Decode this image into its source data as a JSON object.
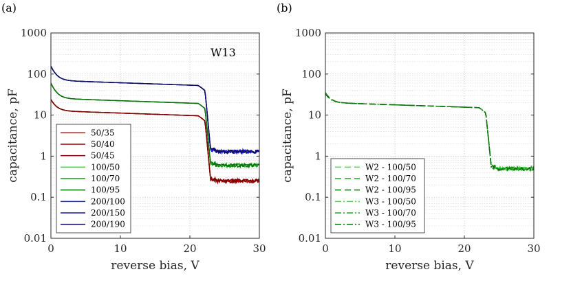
{
  "chart_data": [
    {
      "type": "line",
      "panel_label": "(a)",
      "annotation": "W13",
      "xlabel": "reverse bias, V",
      "ylabel": "capacitance, pF",
      "xlim": [
        0,
        30
      ],
      "ylim": [
        0.01,
        1000
      ],
      "yscale": "log",
      "grid": true,
      "legend_position": "bottom-left",
      "x_ticks": [
        "0",
        "10",
        "20",
        "30"
      ],
      "y_ticks": [
        "0.01",
        "0.1",
        "1",
        "10",
        "100",
        "1000"
      ],
      "series": [
        {
          "name": "50/35",
          "color": "#cc0000",
          "dash": "solid",
          "start": 24,
          "pre_drop": 9.5,
          "drop_v": 22.7,
          "after": 0.25
        },
        {
          "name": "50/40",
          "color": "#a00000",
          "dash": "solid",
          "start": 24,
          "pre_drop": 9.5,
          "drop_v": 22.7,
          "after": 0.25
        },
        {
          "name": "50/45",
          "color": "#7a0000",
          "dash": "solid",
          "start": 24,
          "pre_drop": 9.5,
          "drop_v": 22.7,
          "after": 0.25
        },
        {
          "name": "100/50",
          "color": "#22dd22",
          "dash": "solid",
          "start": 60,
          "pre_drop": 19,
          "drop_v": 22.7,
          "after": 0.6
        },
        {
          "name": "100/70",
          "color": "#159a15",
          "dash": "solid",
          "start": 60,
          "pre_drop": 19,
          "drop_v": 22.7,
          "after": 0.6
        },
        {
          "name": "100/95",
          "color": "#0a6e0a",
          "dash": "solid",
          "start": 60,
          "pre_drop": 19,
          "drop_v": 22.7,
          "after": 0.6
        },
        {
          "name": "200/100",
          "color": "#1a1aee",
          "dash": "solid",
          "start": 155,
          "pre_drop": 52,
          "drop_v": 22.7,
          "after": 1.3
        },
        {
          "name": "200/150",
          "color": "#12129a",
          "dash": "solid",
          "start": 155,
          "pre_drop": 52,
          "drop_v": 22.7,
          "after": 1.3
        },
        {
          "name": "200/190",
          "color": "#0c0c60",
          "dash": "solid",
          "start": 155,
          "pre_drop": 52,
          "drop_v": 22.7,
          "after": 1.3
        }
      ]
    },
    {
      "type": "line",
      "panel_label": "(b)",
      "xlabel": "reverse bias, V",
      "ylabel": "capacitance, pF",
      "xlim": [
        0,
        30
      ],
      "ylim": [
        0.01,
        1000
      ],
      "yscale": "log",
      "grid": true,
      "legend_position": "bottom-left",
      "x_ticks": [
        "0",
        "10",
        "20",
        "30"
      ],
      "y_ticks": [
        "0.01",
        "0.1",
        "1",
        "10",
        "100",
        "1000"
      ],
      "series": [
        {
          "name": "W2 - 100/50",
          "color": "#33e833",
          "dash": "dashed",
          "start": 35,
          "pre_drop": 15,
          "drop_v": 23.6,
          "after": 0.5
        },
        {
          "name": "W2 - 100/70",
          "color": "#1fa81f",
          "dash": "dashed",
          "start": 35,
          "pre_drop": 15,
          "drop_v": 23.6,
          "after": 0.5
        },
        {
          "name": "W2 - 100/95",
          "color": "#0f700f",
          "dash": "dashed",
          "start": 35,
          "pre_drop": 15,
          "drop_v": 23.6,
          "after": 0.5
        },
        {
          "name": "W3 - 100/50",
          "color": "#33e833",
          "dash": "dashdot",
          "start": 33,
          "pre_drop": 15,
          "drop_v": 23.6,
          "after": 0.5
        },
        {
          "name": "W3 - 100/70",
          "color": "#1fa81f",
          "dash": "dashdot",
          "start": 33,
          "pre_drop": 15,
          "drop_v": 23.6,
          "after": 0.5
        },
        {
          "name": "W3 - 100/95",
          "color": "#0f700f",
          "dash": "dashdot",
          "start": 33,
          "pre_drop": 15,
          "drop_v": 23.6,
          "after": 0.5
        }
      ]
    }
  ]
}
